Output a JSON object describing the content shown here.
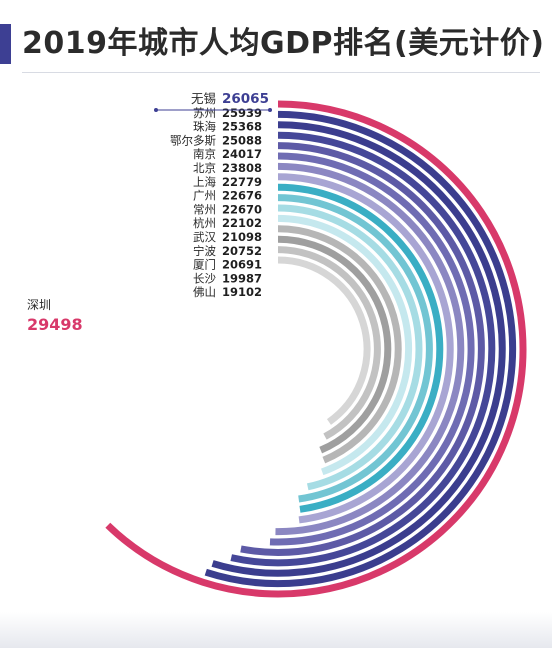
{
  "title": "2019年城市人均GDP排名(美元计价)",
  "colors": {
    "title_bar": "#3d3f93",
    "highlight_red": "#d8396a",
    "value_blue": "#3d3f93",
    "value_red": "#d8396a"
  },
  "chart_data": {
    "type": "radial-bar",
    "title": "2019年城市人均GDP排名(美元计价)",
    "unit": "",
    "categories": [
      "深圳",
      "无锡",
      "苏州",
      "珠海",
      "鄂尔多斯",
      "南京",
      "北京",
      "上海",
      "广州",
      "常州",
      "杭州",
      "武汉",
      "宁波",
      "厦门",
      "长沙",
      "佛山"
    ],
    "values": [
      29498,
      26065,
      25939,
      25368,
      25088,
      24017,
      23808,
      22779,
      22676,
      22670,
      22102,
      21098,
      20752,
      20691,
      19987,
      19102
    ],
    "colors": [
      "#d8396a",
      "#3b3d8e",
      "#3b3d8e",
      "#454798",
      "#5d5aa6",
      "#6f6cb3",
      "#8b87c2",
      "#a8a5d3",
      "#3aaec4",
      "#72c5d3",
      "#a6dce4",
      "#c5e8ee",
      "#b6b6b6",
      "#9f9f9f",
      "#c2c2c2",
      "#d6d6d6"
    ],
    "grid": false,
    "legend": "none"
  }
}
